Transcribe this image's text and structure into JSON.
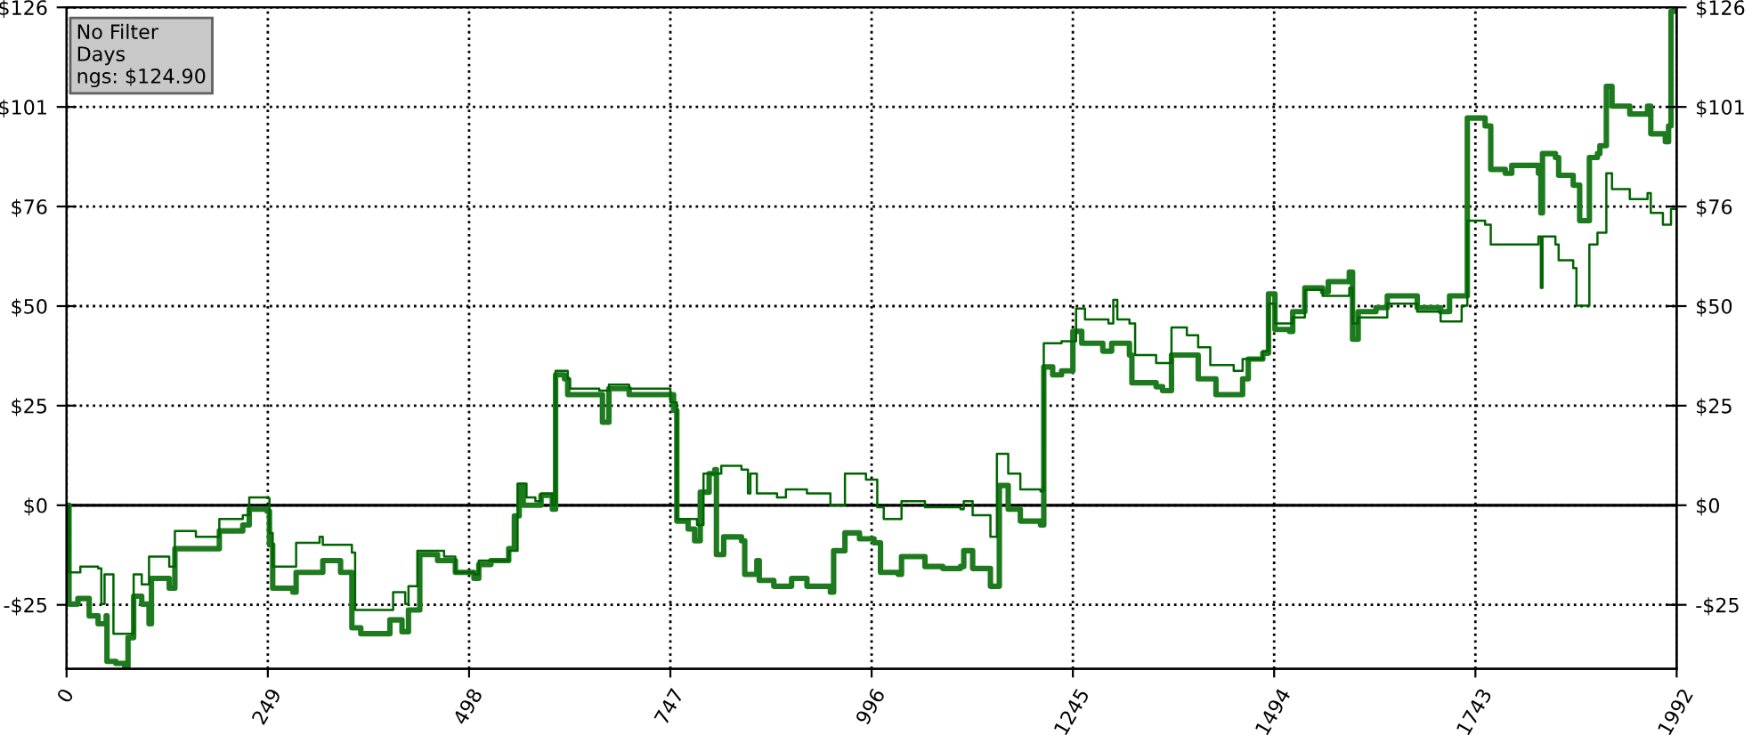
{
  "chart_data": {
    "type": "step",
    "annotations": [
      "No Filter",
      "Days",
      "ngs: $124.90"
    ],
    "xlim": [
      0,
      1992
    ],
    "xticks": [
      0,
      249,
      498,
      747,
      996,
      1245,
      1494,
      1743,
      1992
    ],
    "ylim": [
      -41.4,
      126
    ],
    "yticks": [
      {
        "value": -25.2,
        "label": "-$25"
      },
      {
        "value": 0,
        "label": "$0"
      },
      {
        "value": 25.2,
        "label": "$25"
      },
      {
        "value": 50.4,
        "label": "$50"
      },
      {
        "value": 75.6,
        "label": "$76"
      },
      {
        "value": 100.8,
        "label": "$101"
      },
      {
        "value": 126,
        "label": "$126"
      }
    ],
    "y2lim": [
      -41.4,
      126
    ],
    "y2ticks": [
      {
        "value": -25.2,
        "label": "-$25"
      },
      {
        "value": 0,
        "label": "$0"
      },
      {
        "value": 25.2,
        "label": "$25"
      },
      {
        "value": 50.4,
        "label": "$50"
      },
      {
        "value": 75.6,
        "label": "$76"
      },
      {
        "value": 100.8,
        "label": "$101"
      },
      {
        "value": 126,
        "label": "$126"
      }
    ],
    "grid": true,
    "line_style": "solid",
    "ref_lines": [
      {
        "axis": "y",
        "value": 0,
        "color": "#000000",
        "line_style": "solid"
      }
    ],
    "series": [
      {
        "color": "#1e7a1e",
        "x": [
          0,
          3,
          14,
          28,
          39,
          49,
          50,
          61,
          72,
          76,
          83,
          93,
          102,
          105,
          127,
          134,
          160,
          189,
          218,
          226,
          248,
          251,
          255,
          280,
          284,
          313,
          317,
          339,
          353,
          364,
          386,
          400,
          415,
          423,
          434,
          437,
          459,
          481,
          504,
          510,
          525,
          547,
          554,
          560,
          565,
          580,
          587,
          601,
          605,
          616,
          620,
          642,
          659,
          663,
          671,
          696,
          751,
          755,
          769,
          777,
          784,
          795,
          802,
          804,
          813,
          835,
          839,
          854,
          857,
          875,
          897,
          916,
          945,
          949,
          963,
          981,
          999,
          1007,
          1029,
          1033,
          1062,
          1084,
          1106,
          1110,
          1121,
          1143,
          1154,
          1165,
          1180,
          1205,
          1209,
          1220,
          1231,
          1245,
          1256,
          1282,
          1293,
          1315,
          1318,
          1348,
          1356,
          1367,
          1400,
          1422,
          1444,
          1455,
          1462,
          1480,
          1487,
          1495,
          1513,
          1517,
          1532,
          1554,
          1561,
          1587,
          1591,
          1598,
          1620,
          1634,
          1671,
          1700,
          1711,
          1726,
          1733,
          1755,
          1762,
          1780,
          1788,
          1821,
          1824,
          1826,
          1842,
          1846,
          1864,
          1872,
          1883,
          1884,
          1894,
          1897,
          1905,
          1912,
          1934,
          1956,
          1960,
          1978,
          1982,
          1985,
          1992
        ],
        "values": [
          0,
          -25,
          -23.6,
          -28,
          -30,
          -28,
          -39.5,
          -40,
          -41,
          -33.5,
          -23,
          -25,
          -30,
          -18.5,
          -21,
          -11,
          -11,
          -6.5,
          -5,
          -1,
          -1.5,
          -10,
          -21,
          -22,
          -17,
          -17,
          -14,
          -17,
          -31,
          -32.5,
          -32.5,
          -29,
          -32,
          -26.5,
          -26.5,
          -12.5,
          -14,
          -17,
          -18.5,
          -15,
          -14,
          -11,
          -2.7,
          5,
          0,
          0,
          2.5,
          -1,
          33,
          32,
          28,
          28,
          28,
          21,
          29.5,
          28,
          24,
          -4,
          -6,
          -9,
          3.3,
          8,
          9,
          -12.5,
          -8,
          -9,
          -17.5,
          -14,
          -19,
          -20.5,
          -18.5,
          -20.5,
          -22,
          -11.5,
          -7,
          -8.5,
          -9.5,
          -17,
          -17.5,
          -13,
          -15.5,
          -16,
          -15.5,
          -11.5,
          -16,
          -20.5,
          5,
          -1,
          -4,
          -5,
          35,
          33,
          34,
          44,
          41,
          39,
          41,
          38,
          31,
          30,
          29,
          38,
          32,
          28,
          28,
          32,
          37,
          38.5,
          53.5,
          44.5,
          44,
          49,
          55,
          54,
          56.6,
          59,
          42,
          49,
          50,
          53,
          50,
          49,
          53,
          53,
          98,
          96,
          85,
          84,
          86,
          84,
          74,
          89,
          88,
          83.5,
          81,
          72,
          72,
          88,
          89,
          91,
          106,
          101,
          99,
          101,
          94,
          92,
          96,
          125,
          125
        ]
      },
      {
        "color": "#006400",
        "x": [
          0,
          3,
          17,
          39,
          43,
          47,
          58,
          72,
          83,
          93,
          102,
          127,
          134,
          160,
          189,
          218,
          226,
          248,
          251,
          255,
          280,
          284,
          313,
          317,
          353,
          357,
          386,
          404,
          419,
          423,
          434,
          467,
          481,
          504,
          510,
          547,
          558,
          569,
          580,
          587,
          601,
          605,
          620,
          623,
          659,
          671,
          696,
          747,
          755,
          780,
          788,
          802,
          810,
          835,
          843,
          846,
          854,
          879,
          890,
          916,
          945,
          963,
          989,
          1003,
          1011,
          1029,
          1033,
          1062,
          1106,
          1110,
          1121,
          1143,
          1151,
          1165,
          1180,
          1205,
          1209,
          1231,
          1249,
          1260,
          1289,
          1295,
          1300,
          1315,
          1322,
          1348,
          1356,
          1367,
          1386,
          1400,
          1415,
          1444,
          1455,
          1480,
          1487,
          1495,
          1517,
          1532,
          1554,
          1587,
          1591,
          1598,
          1634,
          1671,
          1700,
          1726,
          1733,
          1755,
          1762,
          1784,
          1821,
          1824,
          1826,
          1842,
          1846,
          1864,
          1868,
          1883,
          1884,
          1894,
          1905,
          1912,
          1934,
          1956,
          1960,
          1975,
          1985,
          1992
        ],
        "values": [
          0,
          -17,
          -15.5,
          -16,
          -25,
          -17.5,
          -32.5,
          -32.5,
          -17.5,
          -20,
          -13,
          -15.5,
          -6.5,
          -8,
          -3.5,
          -2.5,
          2,
          1.8,
          -7,
          -15.5,
          -15.5,
          -9.5,
          -8,
          -10,
          -12,
          -26.5,
          -26.5,
          -22,
          -25,
          -20.5,
          -11.5,
          -13,
          -17,
          -17.5,
          -14,
          -11.5,
          5.5,
          2,
          1,
          3,
          0,
          34,
          32,
          29.5,
          29,
          30.5,
          29.5,
          26,
          -3.5,
          -5,
          8,
          8,
          10,
          9,
          3,
          8,
          3,
          2,
          4,
          3,
          0,
          8,
          6.5,
          -0.5,
          -3.5,
          -3.5,
          1,
          -0.5,
          -1,
          1,
          -2.5,
          -8,
          13,
          8,
          4,
          3.5,
          41,
          41.5,
          49.8,
          47,
          46,
          52,
          47,
          46,
          38,
          36,
          36,
          45,
          43,
          40,
          35.5,
          34,
          37,
          39,
          51,
          46,
          47.5,
          54.5,
          53,
          55,
          46,
          47.5,
          51,
          49,
          46.5,
          50.5,
          72,
          71,
          66,
          66,
          68,
          55,
          68,
          66,
          62,
          60,
          50.5,
          50.5,
          66,
          69,
          84,
          80,
          77.5,
          79,
          74,
          71,
          75,
          75
        ]
      }
    ]
  }
}
